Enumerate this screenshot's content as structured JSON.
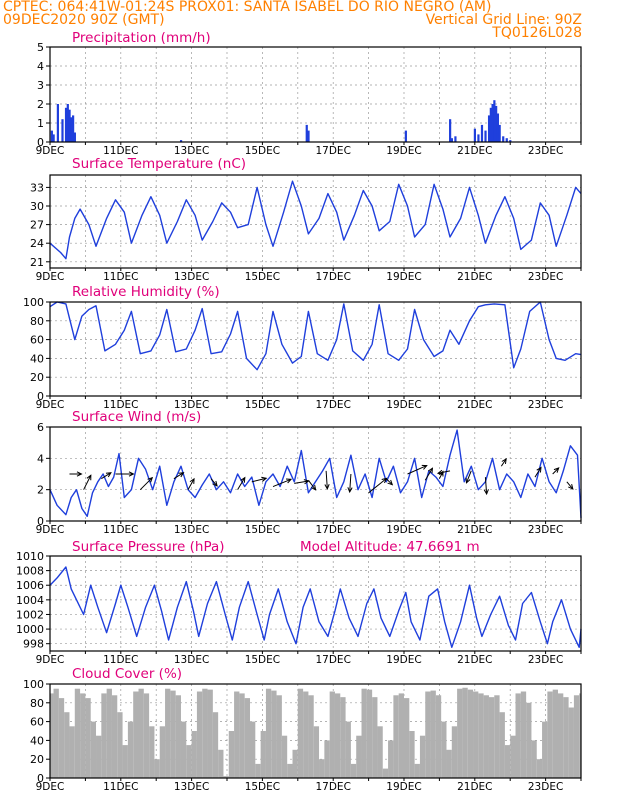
{
  "header": {
    "line1_left": "CPTEC:  064:41W-01:24S  PROX01: SANTA ISABEL DO RIO NEGRO (AM)",
    "line2_left": "09DEC2020 90Z (GMT)",
    "line2_right": "Vertical Grid Line: 90Z",
    "line3_right": "TQ0126L028"
  },
  "colors": {
    "header_text": "#ff8000",
    "panel_title": "#e0007a",
    "series_line": "#1f3fdc",
    "cloud_bars": "#b0b0b0",
    "grid": "#9a9a9a"
  },
  "chart_data": [
    {
      "id": "precip",
      "type": "bar",
      "title": "Precipitation (mm/h)",
      "ylim": [
        0,
        5
      ],
      "yticks": [
        "0",
        "1",
        "2",
        "3",
        "4",
        "5"
      ],
      "xticks": [
        "9DEC",
        "11DEC",
        "13DEC",
        "15DEC",
        "17DEC",
        "19DEC",
        "21DEC",
        "23DEC"
      ],
      "xlim": [
        0,
        15
      ],
      "grid": true,
      "x": [
        0.05,
        0.1,
        0.22,
        0.35,
        0.45,
        0.5,
        0.55,
        0.6,
        0.65,
        0.7,
        3.7,
        7.25,
        7.3,
        10.05,
        11.3,
        11.35,
        11.45,
        12.0,
        12.1,
        12.2,
        12.3,
        12.4,
        12.45,
        12.5,
        12.55,
        12.6,
        12.65,
        12.7,
        12.8,
        12.9,
        13.0
      ],
      "values": [
        0.6,
        0.4,
        2.0,
        1.2,
        1.8,
        2.0,
        1.7,
        1.3,
        1.4,
        0.5,
        0.1,
        0.9,
        0.6,
        0.6,
        1.2,
        0.2,
        0.3,
        0.7,
        0.4,
        0.9,
        0.6,
        1.4,
        1.8,
        2.0,
        2.2,
        1.9,
        1.5,
        0.9,
        0.3,
        0.2,
        0.1
      ]
    },
    {
      "id": "temp",
      "type": "line",
      "title": "Surface Temperature (nC)",
      "ylim": [
        20,
        35
      ],
      "yticks": [
        "21",
        "24",
        "27",
        "30",
        "33"
      ],
      "xticks": [
        "9DEC",
        "11DEC",
        "13DEC",
        "15DEC",
        "17DEC",
        "19DEC",
        "21DEC",
        "23DEC"
      ],
      "xlim": [
        0,
        15
      ],
      "grid": true,
      "x": [
        0,
        0.3,
        0.45,
        0.55,
        0.7,
        0.85,
        1.1,
        1.3,
        1.6,
        1.85,
        2.1,
        2.3,
        2.6,
        2.85,
        3.1,
        3.3,
        3.6,
        3.85,
        4.1,
        4.3,
        4.6,
        4.85,
        5.1,
        5.3,
        5.6,
        5.85,
        6.1,
        6.3,
        6.6,
        6.85,
        7.1,
        7.3,
        7.6,
        7.85,
        8.1,
        8.3,
        8.6,
        8.85,
        9.1,
        9.3,
        9.6,
        9.85,
        10.1,
        10.3,
        10.6,
        10.85,
        11.1,
        11.3,
        11.6,
        11.85,
        12.1,
        12.3,
        12.6,
        12.85,
        13.1,
        13.3,
        13.6,
        13.85,
        14.1,
        14.3,
        14.6,
        14.85,
        15.0
      ],
      "values": [
        24,
        22.5,
        21.5,
        25,
        28,
        29.5,
        27,
        23.5,
        28,
        31,
        29,
        24,
        28.5,
        31.5,
        28.5,
        24,
        27.5,
        31,
        28.5,
        24.5,
        27.5,
        30.5,
        29,
        26.5,
        27,
        33,
        27,
        23.5,
        29,
        34,
        30,
        25.5,
        28,
        32,
        29,
        24.5,
        28.5,
        32.5,
        30,
        26,
        27.5,
        33.5,
        30,
        25,
        27,
        33.5,
        29.5,
        25,
        28,
        33,
        28.5,
        24,
        28.5,
        31.5,
        28,
        23,
        24.5,
        30.5,
        28.5,
        23.5,
        28.5,
        33,
        32
      ]
    },
    {
      "id": "rh",
      "type": "line",
      "title": "Relative Humidity (%)",
      "ylim": [
        0,
        100
      ],
      "yticks": [
        "0",
        "20",
        "40",
        "60",
        "80",
        "100"
      ],
      "xticks": [
        "9DEC",
        "11DEC",
        "13DEC",
        "15DEC",
        "17DEC",
        "19DEC",
        "21DEC",
        "23DEC"
      ],
      "xlim": [
        0,
        15
      ],
      "grid": true,
      "x": [
        0,
        0.2,
        0.45,
        0.7,
        0.9,
        1.1,
        1.3,
        1.55,
        1.85,
        2.1,
        2.3,
        2.55,
        2.85,
        3.1,
        3.3,
        3.55,
        3.85,
        4.1,
        4.3,
        4.55,
        4.85,
        5.1,
        5.3,
        5.55,
        5.85,
        6.1,
        6.3,
        6.55,
        6.85,
        7.1,
        7.3,
        7.55,
        7.85,
        8.1,
        8.3,
        8.55,
        8.85,
        9.1,
        9.3,
        9.55,
        9.85,
        10.1,
        10.3,
        10.55,
        10.85,
        11.1,
        11.3,
        11.55,
        11.85,
        12.1,
        12.3,
        12.55,
        12.85,
        13.1,
        13.3,
        13.55,
        13.85,
        14.1,
        14.3,
        14.55,
        14.85,
        15.0
      ],
      "values": [
        95,
        100,
        98,
        60,
        85,
        92,
        96,
        48,
        55,
        70,
        90,
        45,
        48,
        65,
        92,
        47,
        50,
        70,
        93,
        45,
        47,
        66,
        90,
        40,
        28,
        45,
        90,
        55,
        35,
        42,
        90,
        45,
        38,
        60,
        98,
        48,
        38,
        55,
        97,
        45,
        38,
        50,
        92,
        60,
        42,
        48,
        70,
        55,
        80,
        95,
        97,
        98,
        97,
        30,
        50,
        90,
        100,
        60,
        40,
        38,
        45,
        44
      ]
    },
    {
      "id": "wind",
      "type": "line",
      "title": "Surface Wind (m/s)",
      "ylim": [
        0,
        6
      ],
      "yticks": [
        "0",
        "2",
        "4",
        "6"
      ],
      "xticks": [
        "9DEC",
        "11DEC",
        "13DEC",
        "15DEC",
        "17DEC",
        "19DEC",
        "21DEC",
        "23DEC"
      ],
      "xlim": [
        0,
        15
      ],
      "grid": true,
      "x": [
        0,
        0.2,
        0.45,
        0.6,
        0.75,
        0.9,
        1.05,
        1.2,
        1.35,
        1.5,
        1.65,
        1.8,
        1.95,
        2.1,
        2.3,
        2.5,
        2.7,
        2.9,
        3.1,
        3.3,
        3.5,
        3.7,
        3.9,
        4.1,
        4.3,
        4.5,
        4.7,
        4.9,
        5.1,
        5.3,
        5.5,
        5.7,
        5.9,
        6.1,
        6.3,
        6.5,
        6.7,
        6.9,
        7.1,
        7.3,
        7.5,
        7.7,
        7.9,
        8.1,
        8.3,
        8.5,
        8.7,
        8.9,
        9.1,
        9.3,
        9.5,
        9.7,
        9.9,
        10.1,
        10.3,
        10.5,
        10.7,
        10.9,
        11.1,
        11.3,
        11.5,
        11.7,
        11.9,
        12.1,
        12.3,
        12.5,
        12.7,
        12.9,
        13.1,
        13.3,
        13.5,
        13.7,
        13.9,
        14.1,
        14.3,
        14.5,
        14.7,
        14.9,
        15.0
      ],
      "values": [
        2.0,
        1.0,
        0.4,
        1.5,
        2.0,
        0.8,
        0.3,
        1.8,
        2.5,
        3.0,
        2.2,
        2.8,
        4.3,
        1.5,
        2.0,
        4.0,
        3.3,
        2.0,
        3.5,
        1.0,
        2.5,
        3.5,
        2.0,
        1.5,
        2.3,
        3.0,
        2.0,
        2.5,
        1.8,
        3.0,
        2.2,
        2.8,
        1.0,
        2.5,
        3.0,
        2.2,
        3.5,
        2.5,
        4.5,
        1.8,
        2.5,
        3.2,
        4.0,
        1.5,
        2.5,
        4.2,
        2.0,
        3.0,
        1.5,
        4.0,
        2.5,
        3.5,
        1.8,
        2.5,
        4.0,
        1.5,
        3.2,
        2.8,
        2.2,
        4.2,
        5.8,
        2.5,
        3.5,
        2.0,
        2.5,
        4.0,
        2.0,
        3.0,
        2.5,
        1.5,
        3.0,
        2.2,
        4.0,
        2.5,
        1.8,
        3.2,
        4.8,
        4.2,
        0.2
      ],
      "arrows": [
        {
          "x": 0.55,
          "y": 3.0,
          "u": 1.0,
          "v": 0.0
        },
        {
          "x": 0.95,
          "y": 2.0,
          "u": 0.6,
          "v": 1.2
        },
        {
          "x": 1.45,
          "y": 2.7,
          "u": 0.8,
          "v": 0.5
        },
        {
          "x": 1.85,
          "y": 3.0,
          "u": 1.5,
          "v": 0.0
        },
        {
          "x": 2.55,
          "y": 2.0,
          "u": 1.0,
          "v": 1.0
        },
        {
          "x": 3.5,
          "y": 2.7,
          "u": 0.8,
          "v": 0.5
        },
        {
          "x": 3.9,
          "y": 2.0,
          "u": 0.5,
          "v": 0.9
        },
        {
          "x": 4.55,
          "y": 2.7,
          "u": 0.5,
          "v": -0.6
        },
        {
          "x": 5.3,
          "y": 2.0,
          "u": 0.6,
          "v": 1.0
        },
        {
          "x": 5.7,
          "y": 2.5,
          "u": 1.2,
          "v": 0.3
        },
        {
          "x": 6.3,
          "y": 2.2,
          "u": 1.5,
          "v": 0.6
        },
        {
          "x": 6.9,
          "y": 2.4,
          "u": 1.2,
          "v": 0.2
        },
        {
          "x": 7.3,
          "y": 2.6,
          "u": 0.6,
          "v": -0.8
        },
        {
          "x": 7.8,
          "y": 3.2,
          "u": 0.1,
          "v": -1.5
        },
        {
          "x": 8.5,
          "y": 3.0,
          "u": -0.1,
          "v": -1.5
        },
        {
          "x": 9.0,
          "y": 1.8,
          "u": 1.5,
          "v": 1.2
        },
        {
          "x": 9.5,
          "y": 2.7,
          "u": 0.5,
          "v": -0.5
        },
        {
          "x": 10.1,
          "y": 3.0,
          "u": 1.6,
          "v": 0.7
        },
        {
          "x": 10.6,
          "y": 2.6,
          "u": 0.6,
          "v": 1.0
        },
        {
          "x": 11.0,
          "y": 2.7,
          "u": 0.3,
          "v": 0.6
        },
        {
          "x": 11.3,
          "y": 3.2,
          "u": -1.0,
          "v": -0.2
        },
        {
          "x": 11.9,
          "y": 3.2,
          "u": -0.4,
          "v": -1.0
        },
        {
          "x": 12.3,
          "y": 2.8,
          "u": 0.1,
          "v": -1.4
        },
        {
          "x": 12.75,
          "y": 3.5,
          "u": 0.4,
          "v": 0.6
        },
        {
          "x": 13.7,
          "y": 2.8,
          "u": 0.5,
          "v": 0.8
        },
        {
          "x": 14.2,
          "y": 3.0,
          "u": 0.5,
          "v": 0.5
        },
        {
          "x": 14.6,
          "y": 2.5,
          "u": 0.5,
          "v": -0.6
        }
      ]
    },
    {
      "id": "pres",
      "type": "line",
      "title": "Surface Pressure (hPa)",
      "annotation": "Model Altitude: 47.6691 m",
      "ylim": [
        997,
        1010
      ],
      "yticks": [
        "998",
        "1000",
        "1002",
        "1004",
        "1006",
        "1008",
        "1010"
      ],
      "xticks": [
        "9DEC",
        "11DEC",
        "13DEC",
        "15DEC",
        "17DEC",
        "19DEC",
        "21DEC",
        "23DEC"
      ],
      "xlim": [
        0,
        15
      ],
      "grid": true,
      "x": [
        0,
        0.2,
        0.45,
        0.6,
        0.75,
        0.95,
        1.15,
        1.35,
        1.6,
        1.85,
        2.0,
        2.2,
        2.45,
        2.7,
        2.95,
        3.15,
        3.35,
        3.6,
        3.85,
        4.05,
        4.2,
        4.45,
        4.7,
        4.95,
        5.15,
        5.35,
        5.6,
        5.85,
        6.05,
        6.2,
        6.45,
        6.7,
        6.95,
        7.15,
        7.35,
        7.6,
        7.85,
        8.05,
        8.2,
        8.45,
        8.7,
        8.95,
        9.15,
        9.35,
        9.6,
        9.85,
        10.05,
        10.2,
        10.45,
        10.7,
        10.95,
        11.15,
        11.35,
        11.6,
        11.85,
        12.05,
        12.2,
        12.45,
        12.7,
        12.95,
        13.15,
        13.35,
        13.6,
        13.85,
        14.05,
        14.2,
        14.45,
        14.7,
        14.95,
        15.0
      ],
      "values": [
        1006,
        1007,
        1008.5,
        1005.5,
        1004,
        1002,
        1006,
        1003,
        999.5,
        1003.5,
        1006,
        1003,
        999,
        1003,
        1006,
        1002.5,
        998.5,
        1003,
        1006.5,
        1002.5,
        999,
        1003.5,
        1006.5,
        1002,
        998.5,
        1003,
        1006.5,
        1002,
        998.5,
        1002,
        1005.5,
        1001,
        998,
        1003,
        1005.5,
        1001,
        999,
        1002.5,
        1005.5,
        1001.5,
        999,
        1003.5,
        1005.5,
        1001.5,
        999,
        1002.5,
        1005,
        1001,
        998.5,
        1004.5,
        1005.5,
        1001,
        997.5,
        1001,
        1006,
        1001.5,
        999,
        1002,
        1004.5,
        1000.5,
        998.5,
        1003.5,
        1005,
        1001,
        998,
        1001,
        1004,
        1000,
        997.5,
        1000
      ]
    },
    {
      "id": "cloud",
      "type": "area",
      "title": "Cloud Cover (%)",
      "ylim": [
        0,
        100
      ],
      "yticks": [
        "0",
        "20",
        "40",
        "60",
        "80",
        "100"
      ],
      "xticks": [
        "9DEC",
        "11DEC",
        "13DEC",
        "15DEC",
        "17DEC",
        "19DEC",
        "21DEC",
        "23DEC"
      ],
      "xlim": [
        0,
        15
      ],
      "grid": true,
      "x": [
        0,
        0.1,
        0.25,
        0.4,
        0.55,
        0.7,
        0.85,
        1.0,
        1.15,
        1.3,
        1.45,
        1.6,
        1.75,
        1.9,
        2.05,
        2.2,
        2.35,
        2.5,
        2.65,
        2.8,
        2.95,
        3.1,
        3.25,
        3.4,
        3.55,
        3.7,
        3.85,
        4.0,
        4.15,
        4.3,
        4.45,
        4.6,
        4.75,
        4.9,
        5.05,
        5.2,
        5.35,
        5.5,
        5.65,
        5.8,
        5.95,
        6.1,
        6.25,
        6.4,
        6.55,
        6.7,
        6.85,
        7.0,
        7.15,
        7.3,
        7.45,
        7.6,
        7.75,
        7.9,
        8.05,
        8.2,
        8.35,
        8.5,
        8.65,
        8.8,
        8.95,
        9.1,
        9.25,
        9.4,
        9.55,
        9.7,
        9.85,
        10.0,
        10.15,
        10.3,
        10.45,
        10.6,
        10.75,
        10.9,
        11.05,
        11.2,
        11.35,
        11.5,
        11.65,
        11.8,
        11.95,
        12.1,
        12.25,
        12.4,
        12.55,
        12.7,
        12.85,
        13.0,
        13.15,
        13.3,
        13.45,
        13.6,
        13.75,
        13.9,
        14.05,
        14.2,
        14.35,
        14.5,
        14.65,
        14.8,
        14.95
      ],
      "values": [
        90,
        95,
        85,
        70,
        55,
        95,
        90,
        85,
        60,
        45,
        90,
        95,
        88,
        70,
        35,
        60,
        92,
        95,
        90,
        55,
        20,
        55,
        95,
        93,
        88,
        60,
        35,
        50,
        92,
        95,
        94,
        70,
        30,
        2,
        50,
        92,
        90,
        85,
        60,
        15,
        50,
        95,
        93,
        88,
        45,
        15,
        30,
        95,
        92,
        88,
        55,
        20,
        40,
        92,
        90,
        86,
        60,
        15,
        45,
        95,
        94,
        86,
        55,
        10,
        40,
        88,
        90,
        85,
        50,
        15,
        45,
        92,
        93,
        88,
        60,
        30,
        55,
        95,
        96,
        94,
        92,
        90,
        88,
        86,
        88,
        70,
        35,
        45,
        90,
        92,
        80,
        40,
        20,
        60,
        92,
        94,
        90,
        86,
        75,
        88,
        90
      ]
    }
  ]
}
